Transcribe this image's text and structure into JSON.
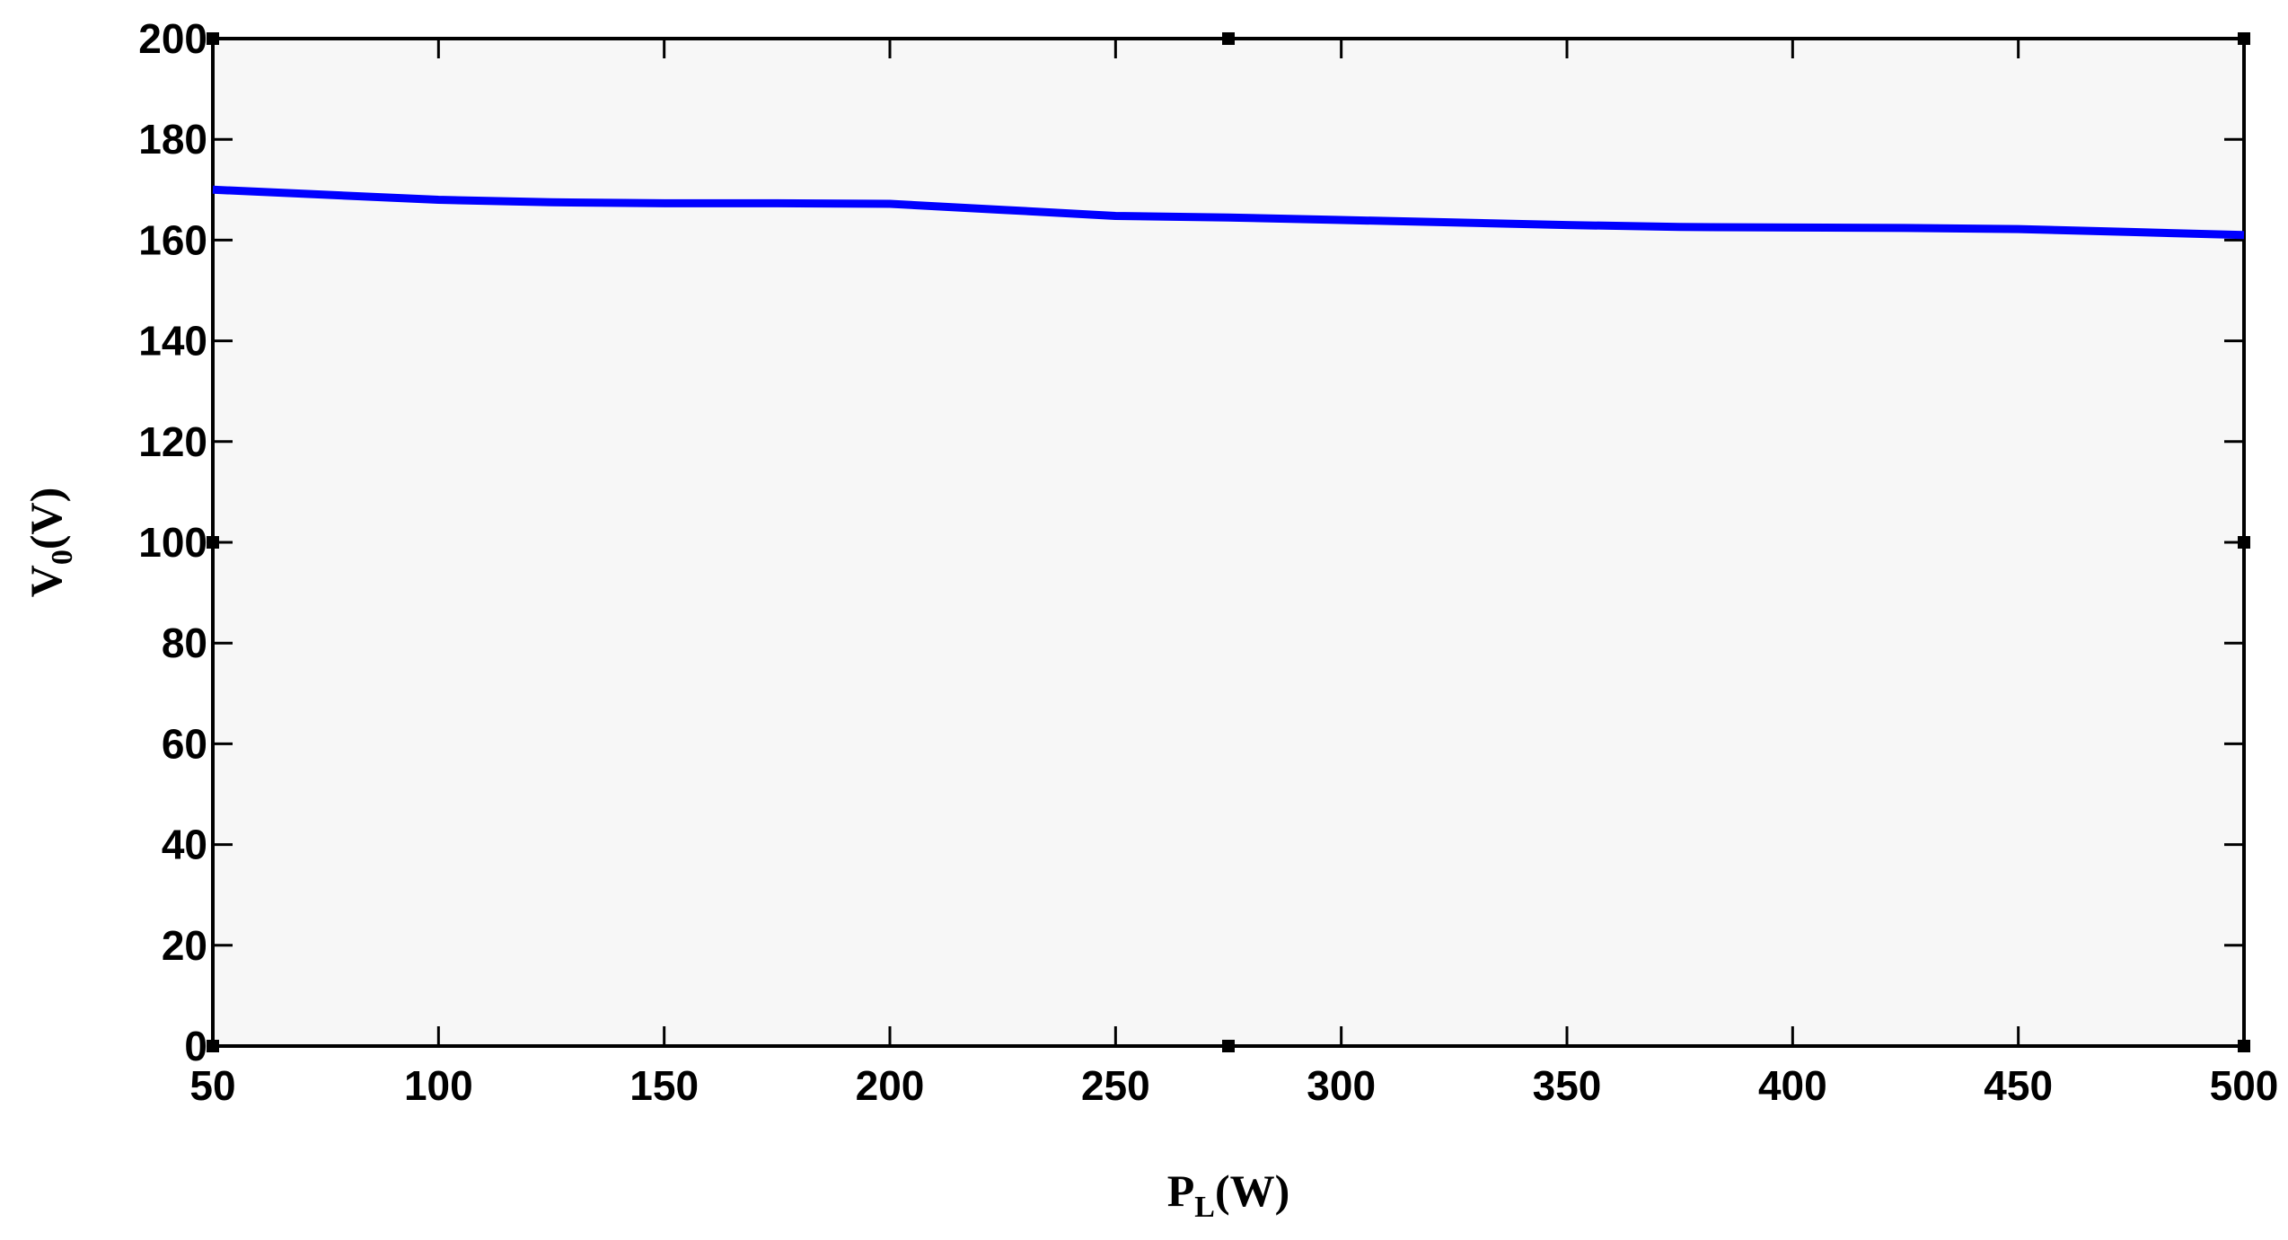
{
  "chart_data": {
    "type": "line",
    "title": "",
    "xlabel": {
      "main": "P",
      "sub": "L",
      "unit": "(W)"
    },
    "ylabel": {
      "main": "V",
      "sub": "0",
      "unit": "(V)"
    },
    "xlim": [
      50,
      500
    ],
    "ylim": [
      0,
      200
    ],
    "xticks": [
      50,
      100,
      150,
      200,
      250,
      300,
      350,
      400,
      450,
      500
    ],
    "yticks": [
      0,
      20,
      40,
      60,
      80,
      100,
      120,
      140,
      160,
      180,
      200
    ],
    "grid": false,
    "series": [
      {
        "color": "#0000ff",
        "x": [
          50,
          75,
          100,
          125,
          150,
          175,
          200,
          225,
          250,
          275,
          300,
          325,
          350,
          375,
          400,
          425,
          450,
          475,
          500
        ],
        "y": [
          170,
          169,
          168,
          167.5,
          167.3,
          167.3,
          167.2,
          166,
          164.8,
          164.5,
          164,
          163.5,
          163,
          162.6,
          162.5,
          162.4,
          162.2,
          161.6,
          161
        ]
      }
    ],
    "colors": {
      "plot_background": "#f7f7f7",
      "axis": "#000000"
    }
  }
}
